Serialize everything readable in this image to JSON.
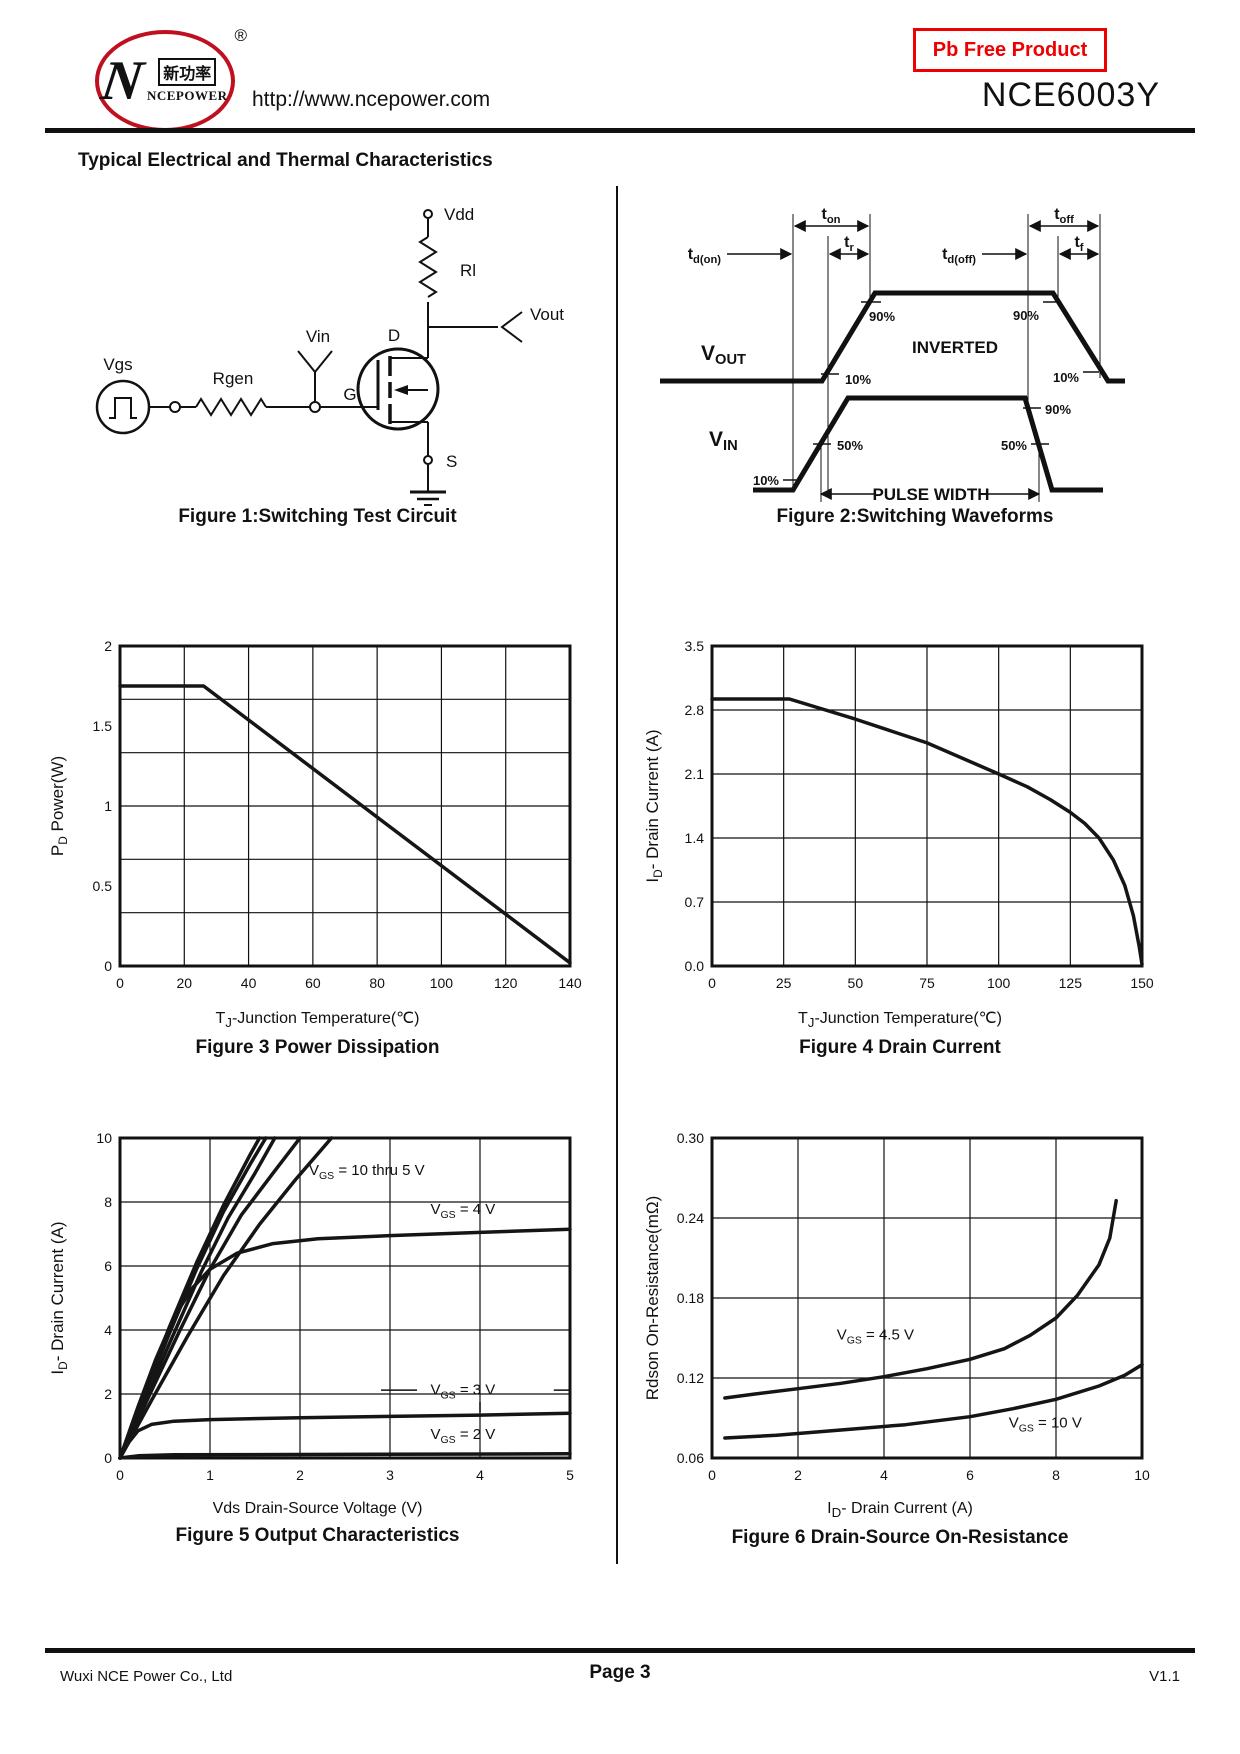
{
  "header": {
    "logo": {
      "glyph": "N",
      "brand_cn": "新功率",
      "brand_en": "NCEPOWER",
      "registered": "®"
    },
    "url": "http://www.ncepower.com",
    "badge": "Pb Free Product",
    "part_number": "NCE6003Y",
    "accent_color": "#ee0000"
  },
  "section_title": "Typical Electrical and Thermal Characteristics",
  "figure1": {
    "caption": "Figure 1:Switching Test Circuit",
    "labels": {
      "vdd": "Vdd",
      "rl": "Rl",
      "vout": "Vout",
      "drain": "D",
      "source": "S",
      "gate": "G",
      "vin": "Vin",
      "rgen": "Rgen",
      "vgs": "Vgs"
    }
  },
  "figure2": {
    "caption": "Figure 2:Switching Waveforms",
    "labels": {
      "t_don": [
        [
          "t",
          0
        ],
        [
          "d(on)",
          1
        ]
      ],
      "t_on": [
        [
          "t",
          0
        ],
        [
          "on",
          1
        ]
      ],
      "t_r": [
        [
          "t",
          0
        ],
        [
          "r",
          1
        ]
      ],
      "t_doff": [
        [
          "t",
          0
        ],
        [
          "d(off)",
          1
        ]
      ],
      "t_off": [
        [
          "t",
          0
        ],
        [
          "off",
          1
        ]
      ],
      "t_f": [
        [
          "t",
          0
        ],
        [
          "f",
          1
        ]
      ],
      "v_out": [
        [
          "V",
          0
        ],
        [
          "OUT",
          1
        ]
      ],
      "v_in": [
        [
          "V",
          0
        ],
        [
          "IN",
          1
        ]
      ],
      "inverted": "INVERTED",
      "pulse_width": "PULSE WIDTH",
      "pct90": "90%",
      "pct50": "50%",
      "pct10": "10%"
    }
  },
  "chart_data": [
    {
      "id": "fig3",
      "type": "line",
      "title": "Figure 3 Power Dissipation",
      "xlabel_segments": [
        [
          "T",
          0
        ],
        [
          "J",
          1
        ],
        [
          "-Junction Temperature(℃)",
          0
        ]
      ],
      "ylabel_segments": [
        [
          "P",
          0
        ],
        [
          "D",
          1
        ],
        [
          "  Power(W)",
          0
        ]
      ],
      "xlim": [
        0,
        140
      ],
      "ylim": [
        0,
        2
      ],
      "xticks": [
        0,
        20,
        40,
        60,
        80,
        100,
        120,
        140
      ],
      "xtick_labels": [
        "0",
        "20",
        "40",
        "60",
        "80",
        "100",
        "120",
        "140"
      ],
      "yticks": [
        2,
        1.5,
        1,
        0.5,
        0
      ],
      "ytick_labels": [
        "2",
        "1.5",
        "1",
        "0.5",
        "0"
      ],
      "ygrid": [
        1.6667,
        1.3333,
        1.0,
        0.6667,
        0.3333
      ],
      "margins": {
        "l": 75,
        "t": 16,
        "r": 20,
        "b": 34
      },
      "series": [
        {
          "name": "Power dissipation limit",
          "points": [
            [
              0,
              1.75
            ],
            [
              26,
              1.75
            ],
            [
              140,
              0.02
            ]
          ]
        }
      ]
    },
    {
      "id": "fig4",
      "type": "line",
      "title": "Figure 4 Drain Current",
      "xlabel_segments": [
        [
          "T",
          0
        ],
        [
          "J",
          1
        ],
        [
          "-Junction Temperature(℃)",
          0
        ]
      ],
      "ylabel_segments": [
        [
          "I",
          0
        ],
        [
          "D",
          1
        ],
        [
          "- Drain Current (A)",
          0
        ]
      ],
      "xlim": [
        0,
        150
      ],
      "ylim": [
        0,
        3.5
      ],
      "xticks": [
        0,
        25,
        50,
        75,
        100,
        125,
        150
      ],
      "xtick_labels": [
        "0",
        "25",
        "50",
        "75",
        "100",
        "125",
        "150"
      ],
      "yticks": [
        3.5,
        2.8,
        2.1,
        1.4,
        0.7,
        0
      ],
      "ytick_labels": [
        "3.5",
        "2.8",
        "2.1",
        "1.4",
        "0.7",
        "0.0"
      ],
      "margins": {
        "l": 72,
        "t": 16,
        "r": 18,
        "b": 34
      },
      "series": [
        {
          "name": "Drain current limit",
          "points": [
            [
              0,
              2.92
            ],
            [
              27,
              2.92
            ],
            [
              50,
              2.7
            ],
            [
              75,
              2.44
            ],
            [
              100,
              2.1
            ],
            [
              110,
              1.96
            ],
            [
              118,
              1.82
            ],
            [
              125,
              1.68
            ],
            [
              130,
              1.56
            ],
            [
              135,
              1.4
            ],
            [
              140,
              1.16
            ],
            [
              144,
              0.88
            ],
            [
              147,
              0.55
            ],
            [
              149,
              0.22
            ],
            [
              150,
              0.02
            ]
          ]
        }
      ]
    },
    {
      "id": "fig5",
      "type": "line",
      "title": "Figure 5 Output Characteristics",
      "xlabel_segments": [
        [
          "Vds Drain-Source Voltage (V)",
          0
        ]
      ],
      "ylabel_segments": [
        [
          "I",
          0
        ],
        [
          "D",
          1
        ],
        [
          "- Drain Current (A)",
          0
        ]
      ],
      "xlim": [
        0,
        5
      ],
      "ylim": [
        0,
        10
      ],
      "xticks": [
        0,
        1,
        2,
        3,
        4,
        5
      ],
      "xtick_labels": [
        "0",
        "1",
        "2",
        "3",
        "4",
        "5"
      ],
      "yticks": [
        10,
        8,
        6,
        4,
        2,
        0
      ],
      "ytick_labels": [
        "10",
        "8",
        "6",
        "4",
        "2",
        "0"
      ],
      "margins": {
        "l": 75,
        "t": 16,
        "r": 20,
        "b": 34
      },
      "series": [
        {
          "name": "VGS = 10 thru 5 V (curve 1)",
          "points": [
            [
              0,
              0
            ],
            [
              0.25,
              1.9
            ],
            [
              0.55,
              4.1
            ],
            [
              0.85,
              6.1
            ],
            [
              1.15,
              7.9
            ],
            [
              1.45,
              9.5
            ],
            [
              1.55,
              10
            ]
          ]
        },
        {
          "name": "VGS = 10 thru 5 V (curve 2)",
          "points": [
            [
              0,
              0
            ],
            [
              0.25,
              1.8
            ],
            [
              0.55,
              3.9
            ],
            [
              0.85,
              5.9
            ],
            [
              1.15,
              7.7
            ],
            [
              1.45,
              9.2
            ],
            [
              1.62,
              10
            ]
          ]
        },
        {
          "name": "VGS = 10 thru 5 V (curve 3)",
          "points": [
            [
              0,
              0
            ],
            [
              0.27,
              1.8
            ],
            [
              0.6,
              3.9
            ],
            [
              0.9,
              5.8
            ],
            [
              1.2,
              7.5
            ],
            [
              1.5,
              8.9
            ],
            [
              1.72,
              10
            ]
          ]
        },
        {
          "name": "VGS = 10 thru 5 V (curve 4)",
          "points": [
            [
              0,
              0
            ],
            [
              0.3,
              1.8
            ],
            [
              0.65,
              3.9
            ],
            [
              1.0,
              5.9
            ],
            [
              1.35,
              7.6
            ],
            [
              1.7,
              8.9
            ],
            [
              2.0,
              10
            ]
          ]
        },
        {
          "name": "VGS = 10 thru 5 V (curve 5)",
          "points": [
            [
              0,
              0
            ],
            [
              0.35,
              1.8
            ],
            [
              0.75,
              3.8
            ],
            [
              1.15,
              5.7
            ],
            [
              1.55,
              7.3
            ],
            [
              1.95,
              8.7
            ],
            [
              2.35,
              10
            ]
          ]
        },
        {
          "name": "VGS = 4 V",
          "points": [
            [
              0,
              0
            ],
            [
              0.2,
              1.6
            ],
            [
              0.4,
              3.1
            ],
            [
              0.6,
              4.4
            ],
            [
              0.8,
              5.3
            ],
            [
              1.0,
              5.9
            ],
            [
              1.3,
              6.4
            ],
            [
              1.7,
              6.7
            ],
            [
              2.2,
              6.85
            ],
            [
              3.0,
              6.95
            ],
            [
              4.0,
              7.05
            ],
            [
              5.0,
              7.15
            ]
          ]
        },
        {
          "name": "VGS = 3 V",
          "points": [
            [
              0,
              0
            ],
            [
              0.1,
              0.5
            ],
            [
              0.2,
              0.85
            ],
            [
              0.35,
              1.05
            ],
            [
              0.6,
              1.15
            ],
            [
              1.0,
              1.2
            ],
            [
              2.0,
              1.26
            ],
            [
              3.0,
              1.3
            ],
            [
              4.0,
              1.34
            ],
            [
              5.0,
              1.4
            ]
          ]
        },
        {
          "name": "VGS = 2 V",
          "points": [
            [
              0,
              0
            ],
            [
              0.2,
              0.07
            ],
            [
              0.6,
              0.1
            ],
            [
              5.0,
              0.13
            ]
          ]
        }
      ],
      "annotations": [
        {
          "x": 2.1,
          "y": 8.85,
          "anchor": "start",
          "segments": [
            [
              "V",
              0
            ],
            [
              "GS",
              1
            ],
            [
              " = 10 thru 5 V",
              0
            ]
          ]
        },
        {
          "x": 3.45,
          "y": 7.62,
          "anchor": "start",
          "segments": [
            [
              "V",
              0
            ],
            [
              "GS",
              1
            ],
            [
              " = 4 V",
              0
            ]
          ]
        },
        {
          "x": 3.45,
          "y": 1.98,
          "anchor": "start",
          "segments": [
            [
              "V",
              0
            ],
            [
              "GS",
              1
            ],
            [
              " = 3 V",
              0
            ]
          ]
        },
        {
          "x": 3.45,
          "y": 0.6,
          "anchor": "start",
          "segments": [
            [
              "V",
              0
            ],
            [
              "GS",
              1
            ],
            [
              " = 2 V",
              0
            ]
          ]
        }
      ],
      "ann_lines": [
        [
          2.9,
          2.12,
          3.3,
          2.12
        ],
        [
          4.82,
          2.12,
          5.0,
          2.12
        ],
        [
          4.0,
          1.75,
          4.0,
          1.42
        ]
      ]
    },
    {
      "id": "fig6",
      "type": "line",
      "title": "Figure 6 Drain-Source On-Resistance",
      "xlabel_segments": [
        [
          "I",
          0
        ],
        [
          "D",
          1
        ],
        [
          "- Drain Current (A)",
          0
        ]
      ],
      "ylabel_segments": [
        [
          "Rdson On-Resistance(m",
          0
        ],
        [
          "Ω",
          0
        ],
        [
          ")",
          0
        ]
      ],
      "xlim": [
        0,
        10
      ],
      "ylim": [
        0.06,
        0.3
      ],
      "xticks": [
        0,
        2,
        4,
        6,
        8,
        10
      ],
      "xtick_labels": [
        "0",
        "2",
        "4",
        "6",
        "8",
        "10"
      ],
      "yticks": [
        0.3,
        0.24,
        0.18,
        0.12,
        0.06
      ],
      "ytick_labels": [
        "0.30",
        "0.24",
        "0.18",
        "0.12",
        "0.06"
      ],
      "margins": {
        "l": 72,
        "t": 16,
        "r": 18,
        "b": 34
      },
      "series": [
        {
          "name": "VGS = 4.5 V",
          "points": [
            [
              0.3,
              0.105
            ],
            [
              1.0,
              0.108
            ],
            [
              2.0,
              0.112
            ],
            [
              3.0,
              0.116
            ],
            [
              4.0,
              0.121
            ],
            [
              5.0,
              0.127
            ],
            [
              6.0,
              0.134
            ],
            [
              6.8,
              0.142
            ],
            [
              7.4,
              0.152
            ],
            [
              8.0,
              0.165
            ],
            [
              8.5,
              0.182
            ],
            [
              9.0,
              0.205
            ],
            [
              9.25,
              0.225
            ],
            [
              9.4,
              0.253
            ]
          ]
        },
        {
          "name": "VGS = 10 V",
          "points": [
            [
              0.3,
              0.075
            ],
            [
              1.5,
              0.077
            ],
            [
              3.0,
              0.081
            ],
            [
              4.5,
              0.085
            ],
            [
              6.0,
              0.091
            ],
            [
              7.0,
              0.097
            ],
            [
              8.0,
              0.104
            ],
            [
              9.0,
              0.114
            ],
            [
              9.6,
              0.122
            ],
            [
              10.0,
              0.13
            ]
          ]
        }
      ],
      "annotations": [
        {
          "x": 2.9,
          "y": 0.149,
          "anchor": "start",
          "segments": [
            [
              "V",
              0
            ],
            [
              "GS",
              1
            ],
            [
              " = 4.5 V",
              0
            ]
          ]
        },
        {
          "x": 6.9,
          "y": 0.083,
          "anchor": "start",
          "segments": [
            [
              "V",
              0
            ],
            [
              "GS",
              1
            ],
            [
              " = 10 V",
              0
            ]
          ]
        }
      ]
    }
  ],
  "footer": {
    "company": "Wuxi NCE Power Co., Ltd",
    "page": "Page 3",
    "version": "V1.1"
  }
}
